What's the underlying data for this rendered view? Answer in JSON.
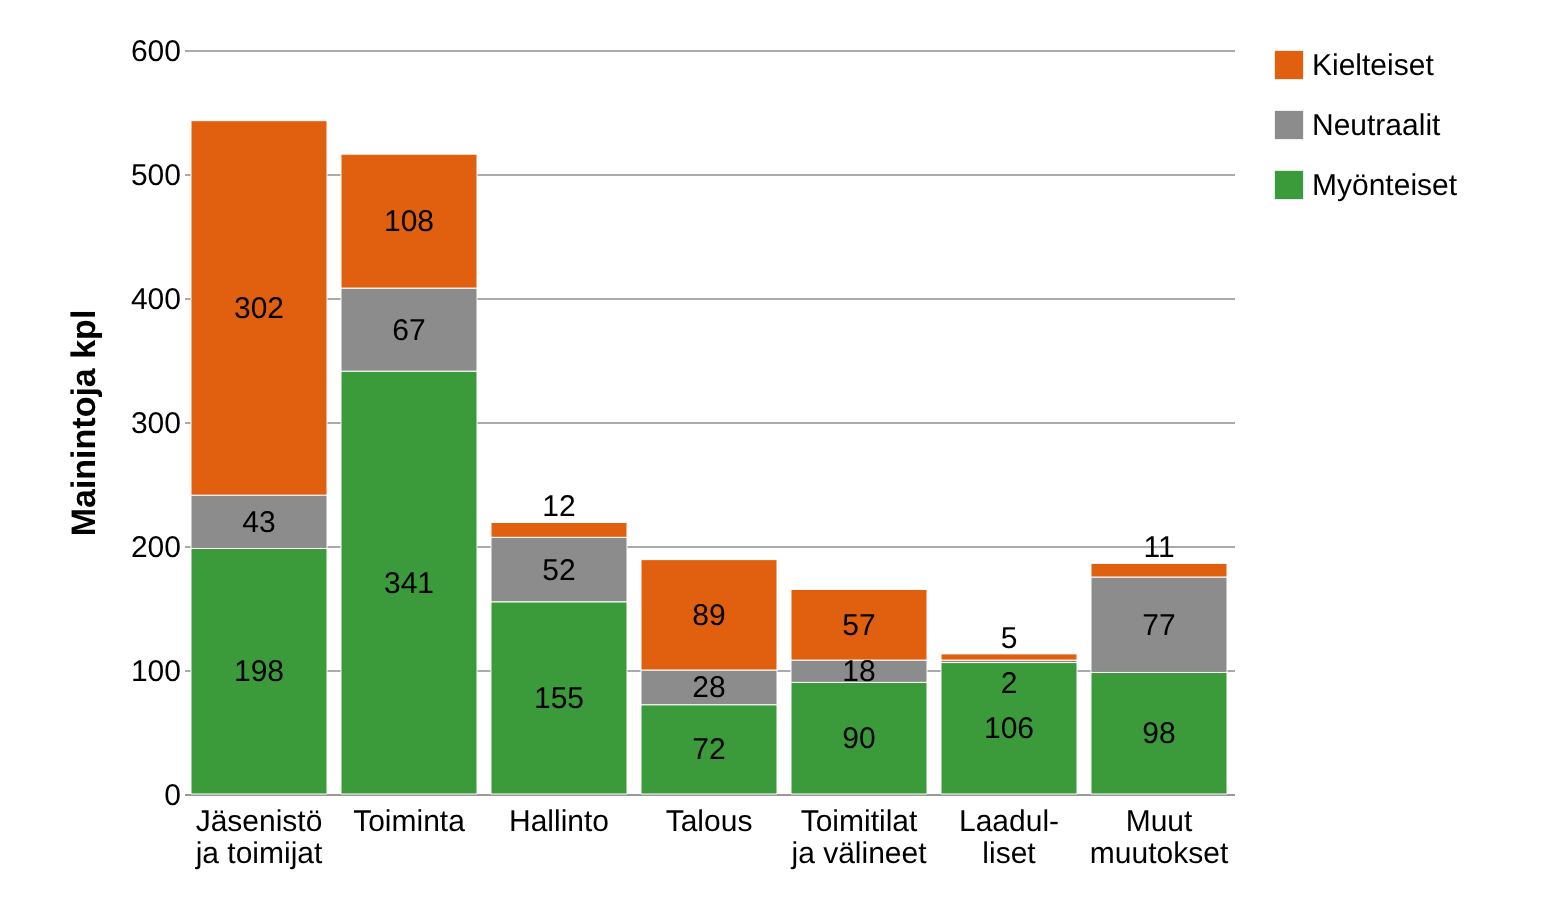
{
  "chart_data": {
    "type": "bar",
    "stacked": true,
    "ylabel": "Mainintoja kpl",
    "categories": [
      "Jäsenistö\nja toimijat",
      "Toiminta",
      "Hallinto",
      "Talous",
      "Toimitilat\nja välineet",
      "Laadul-\nliset",
      "Muut\nmuutokset"
    ],
    "series": [
      {
        "name": "Myönteiset",
        "color": "#3b9a3a",
        "values": [
          198,
          341,
          155,
          72,
          90,
          106,
          98
        ]
      },
      {
        "name": "Neutraalit",
        "color": "#8c8c8c",
        "values": [
          43,
          67,
          52,
          28,
          18,
          2,
          77
        ]
      },
      {
        "name": "Kielteiset",
        "color": "#e0600f",
        "values": [
          302,
          108,
          12,
          89,
          57,
          5,
          11
        ]
      }
    ],
    "ylim": [
      0,
      600
    ],
    "yticks": [
      0,
      100,
      200,
      300,
      400,
      500,
      600
    ],
    "grid": "y",
    "legend": "right",
    "data_labels": true
  }
}
